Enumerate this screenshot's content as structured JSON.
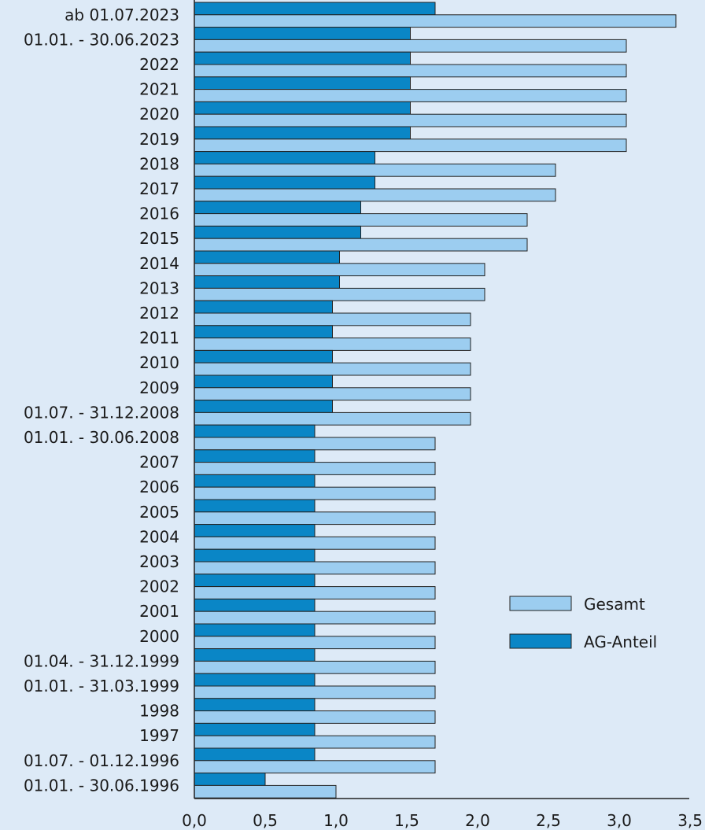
{
  "chart_data": {
    "type": "bar",
    "orientation": "horizontal",
    "categories": [
      "ab 01.07.2023",
      "01.01. - 30.06.2023",
      "2022",
      "2021",
      "2020",
      "2019",
      "2018",
      "2017",
      "2016",
      "2015",
      "2014",
      "2013",
      "2012",
      "2011",
      "2010",
      "2009",
      "01.07. - 31.12.2008",
      "01.01. - 30.06.2008",
      "2007",
      "2006",
      "2005",
      "2004",
      "2003",
      "2002",
      "2001",
      "2000",
      "01.04. - 31.12.1999",
      "01.01. - 31.03.1999",
      "1998",
      "1997",
      "01.07. - 01.12.1996",
      "01.01. - 30.06.1996"
    ],
    "series": [
      {
        "name": "AG-Anteil",
        "color": "#0a86c6",
        "values": [
          1.7,
          1.525,
          1.525,
          1.525,
          1.525,
          1.525,
          1.275,
          1.275,
          1.175,
          1.175,
          1.025,
          1.025,
          0.975,
          0.975,
          0.975,
          0.975,
          0.975,
          0.85,
          0.85,
          0.85,
          0.85,
          0.85,
          0.85,
          0.85,
          0.85,
          0.85,
          0.85,
          0.85,
          0.85,
          0.85,
          0.85,
          0.5
        ]
      },
      {
        "name": "Gesamt",
        "color": "#9ccdf0",
        "values": [
          3.4,
          3.05,
          3.05,
          3.05,
          3.05,
          3.05,
          2.55,
          2.55,
          2.35,
          2.35,
          2.05,
          2.05,
          1.95,
          1.95,
          1.95,
          1.95,
          1.95,
          1.7,
          1.7,
          1.7,
          1.7,
          1.7,
          1.7,
          1.7,
          1.7,
          1.7,
          1.7,
          1.7,
          1.7,
          1.7,
          1.7,
          1.0
        ]
      }
    ],
    "x_ticks": [
      "0,0",
      "0,5",
      "1,0",
      "1,5",
      "2,0",
      "2,5",
      "3,0",
      "3,5"
    ],
    "xlim": [
      0,
      3.5
    ],
    "title": "",
    "xlabel": "",
    "ylabel": "",
    "grid": false,
    "legend": {
      "placement": "right",
      "entries": [
        {
          "label": "Gesamt",
          "color": "#9ccdf0"
        },
        {
          "label": "AG-Anteil",
          "color": "#0a86c6"
        }
      ]
    }
  }
}
